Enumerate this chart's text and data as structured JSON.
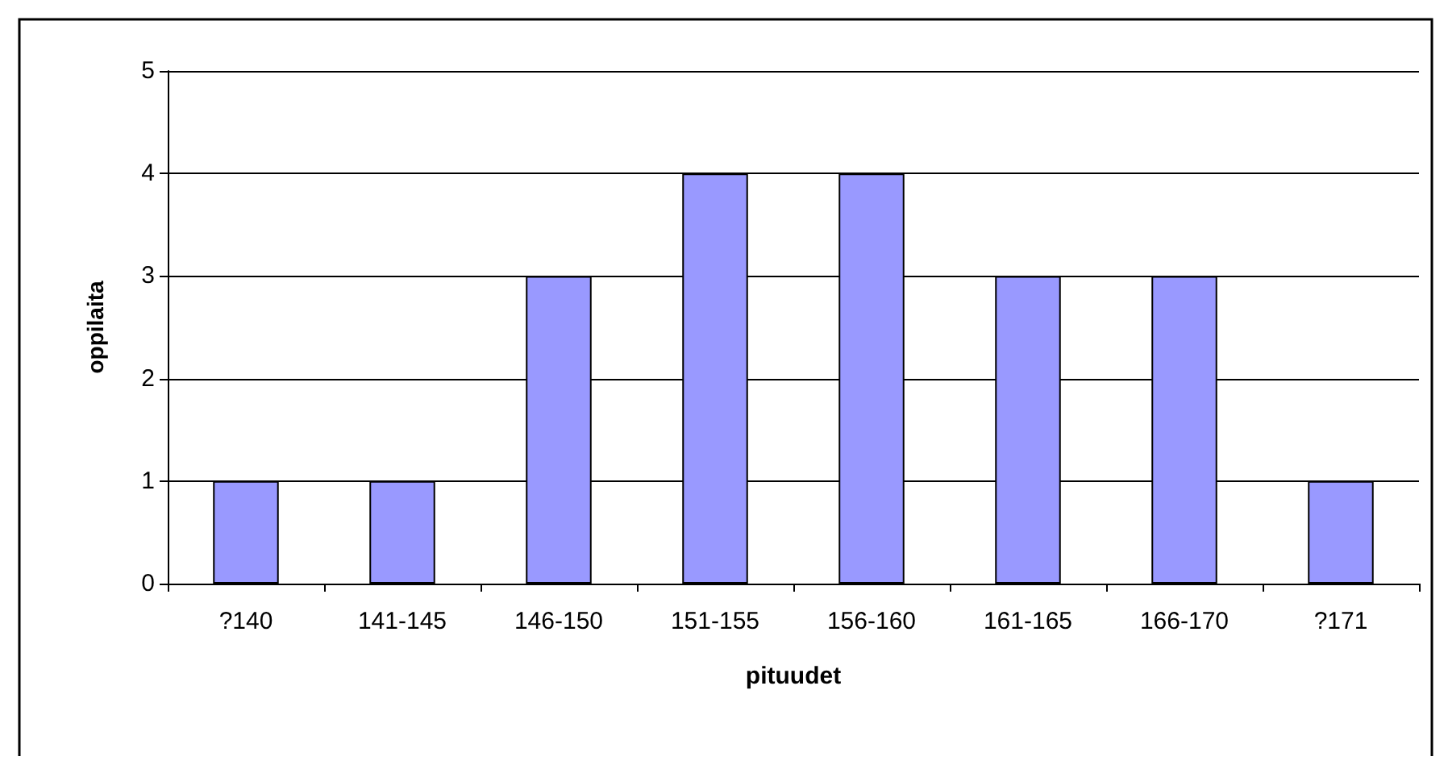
{
  "chart_data": {
    "type": "bar",
    "xlabel": "pituudet",
    "ylabel": "oppilaita",
    "categories": [
      "?140",
      "141-145",
      "146-150",
      "151-155",
      "156-160",
      "161-165",
      "166-170",
      "?171"
    ],
    "values": [
      1,
      1,
      3,
      4,
      4,
      3,
      3,
      1
    ],
    "color": "#9999ff",
    "ylim": [
      0,
      5
    ],
    "yticks": [
      0,
      1,
      2,
      3,
      4,
      5
    ],
    "grid": "y"
  }
}
